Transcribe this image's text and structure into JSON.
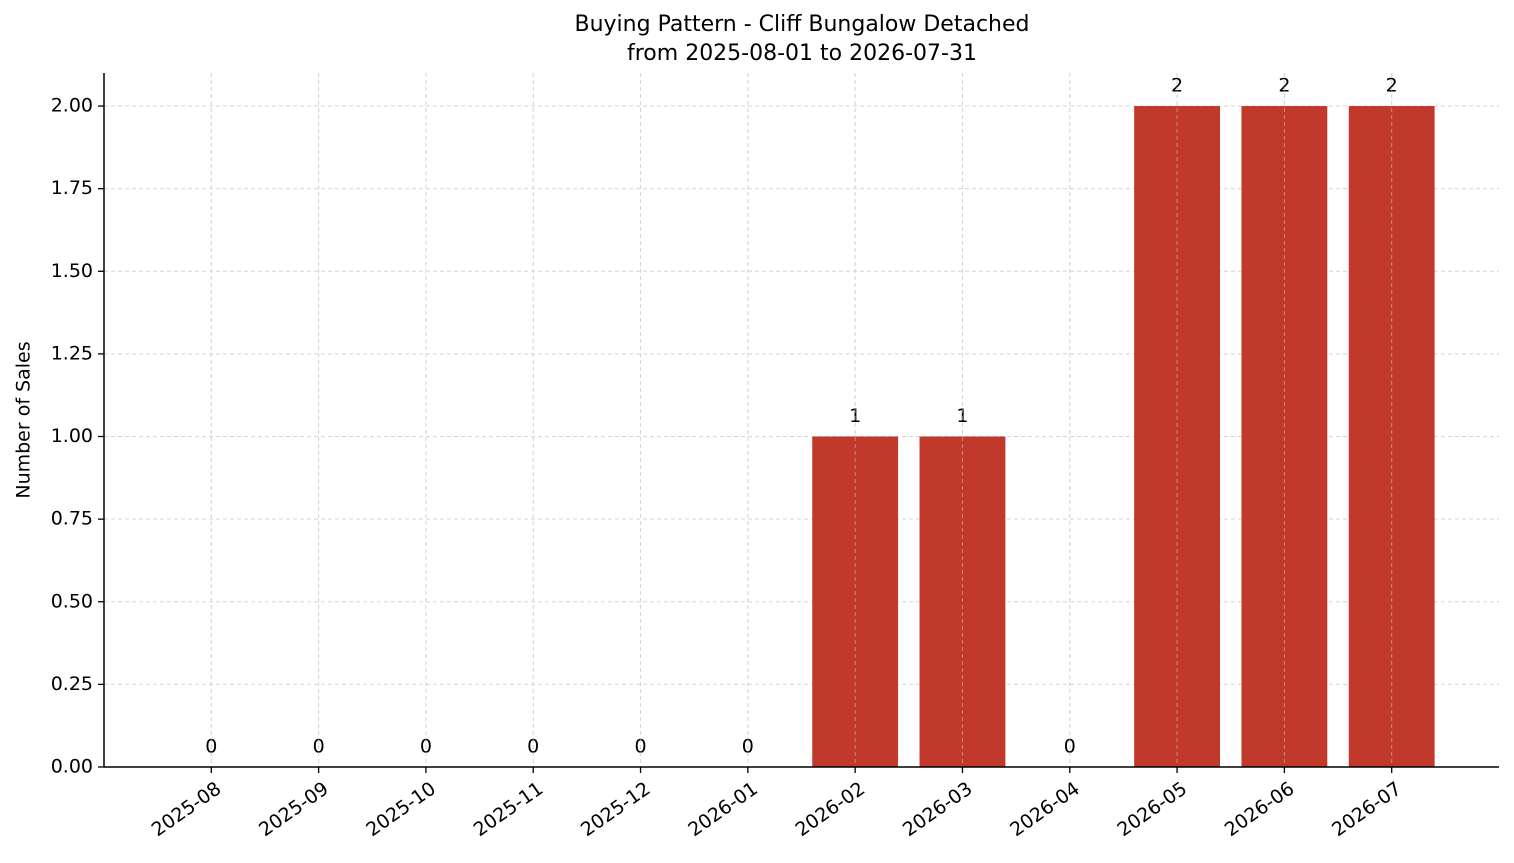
{
  "chart_data": {
    "type": "bar",
    "title": "Buying Pattern - Cliff Bungalow Detached",
    "subtitle": "from 2025-08-01 to 2026-07-31",
    "y_label": "Number of Sales",
    "categories": [
      "2025-08",
      "2025-09",
      "2025-10",
      "2025-11",
      "2025-12",
      "2026-01",
      "2026-02",
      "2026-03",
      "2026-04",
      "2026-05",
      "2026-06",
      "2026-07"
    ],
    "values": [
      0,
      0,
      0,
      0,
      0,
      0,
      1,
      1,
      0,
      2,
      2,
      2
    ],
    "color": "#c0392b",
    "ylim": [
      0,
      2.1
    ],
    "yticks": [
      {
        "value": 0,
        "label": "0.00"
      },
      {
        "value": 0.25,
        "label": "0.25"
      },
      {
        "value": 0.5,
        "label": "0.50"
      },
      {
        "value": 0.75,
        "label": "0.75"
      },
      {
        "value": 1,
        "label": "1.00"
      },
      {
        "value": 1.25,
        "label": "1.25"
      },
      {
        "value": 1.5,
        "label": "1.50"
      },
      {
        "value": 1.75,
        "label": "1.75"
      },
      {
        "value": 2,
        "label": "2.00"
      }
    ],
    "grid": true
  }
}
